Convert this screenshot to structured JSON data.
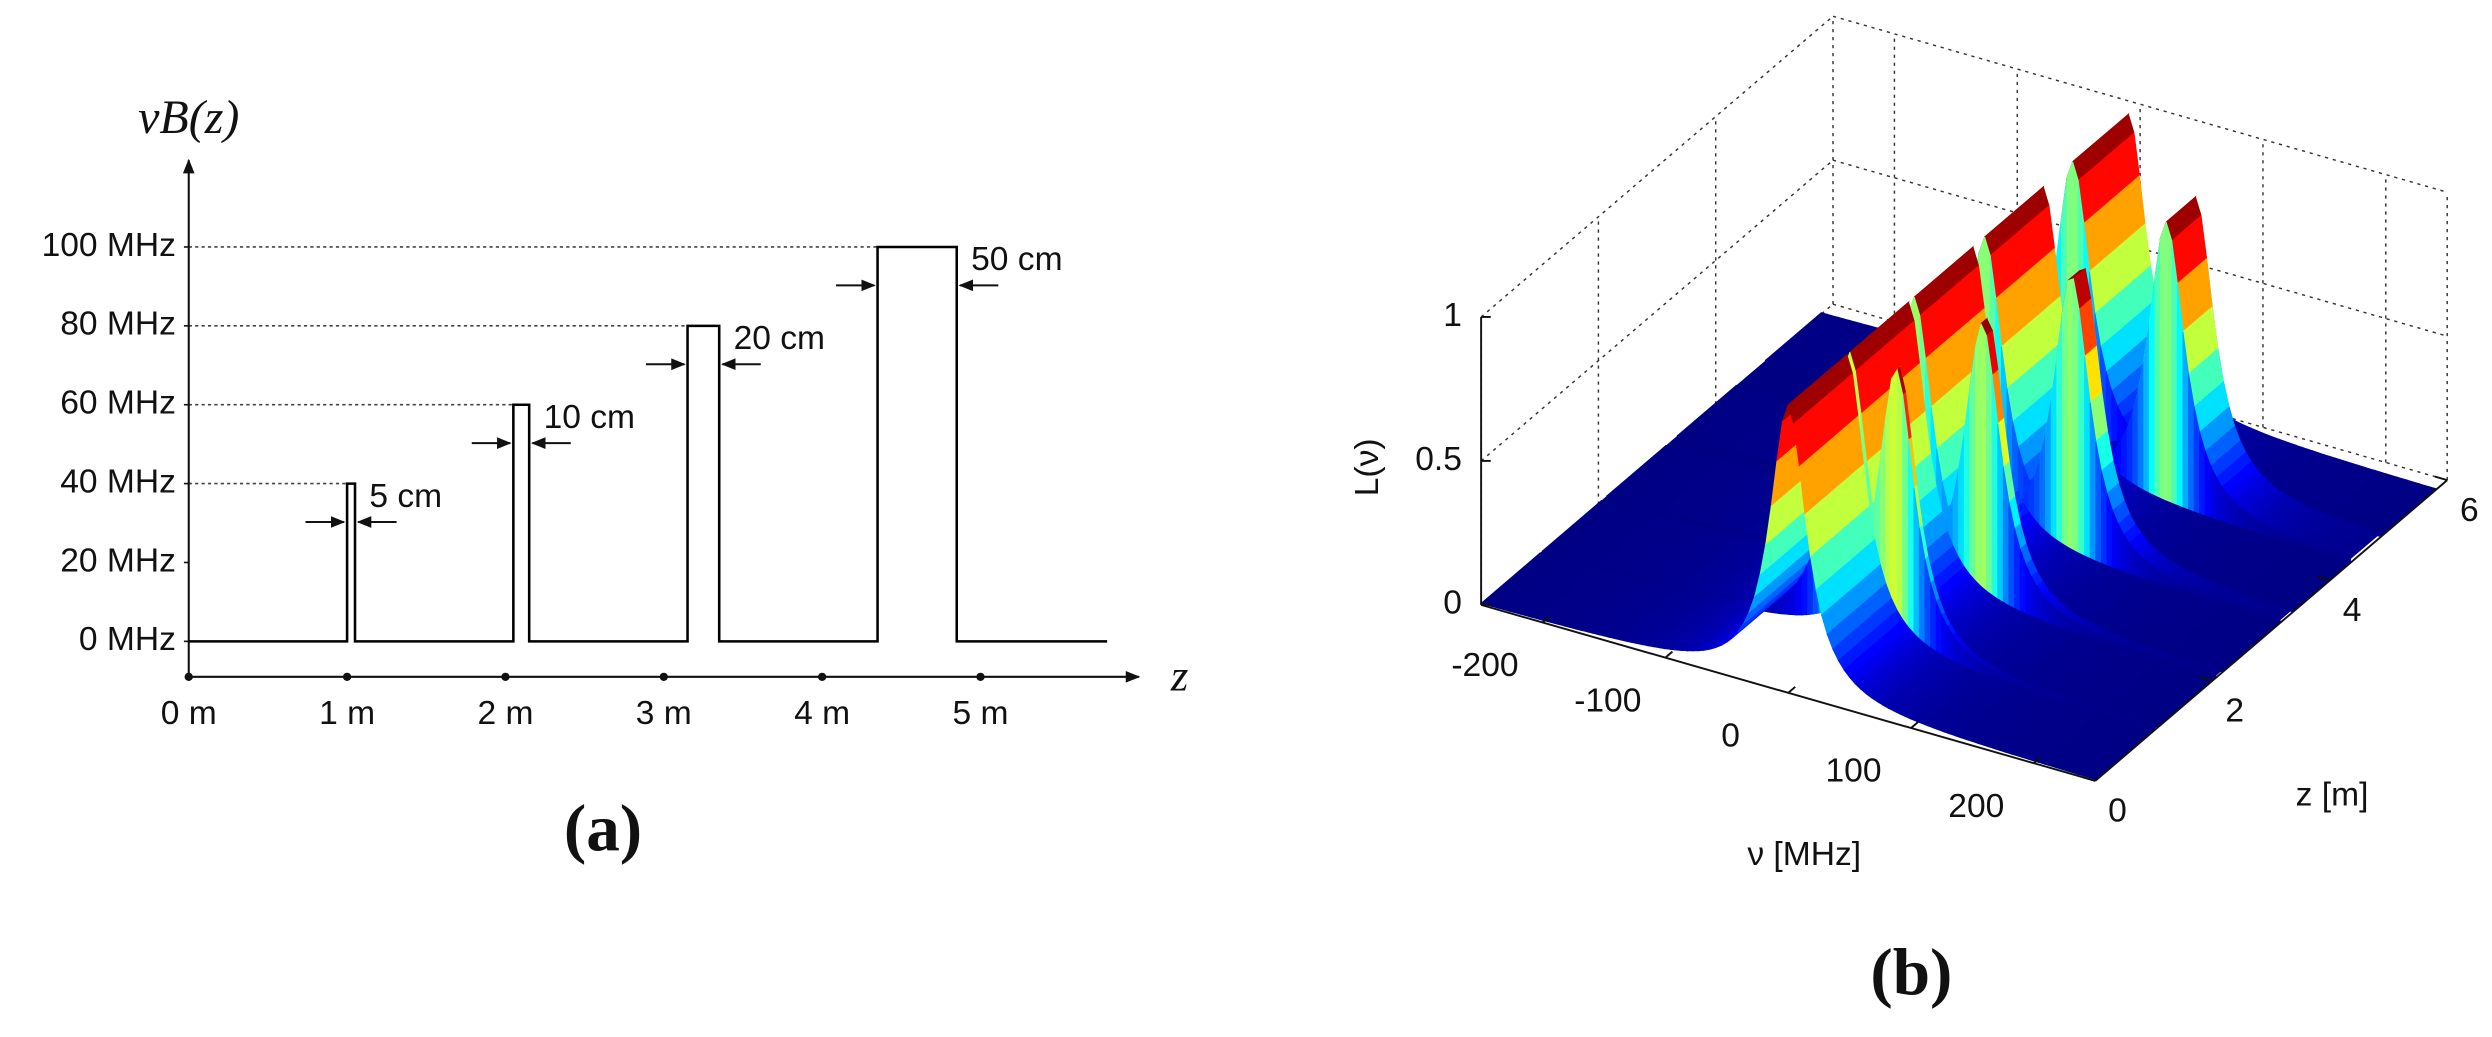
{
  "chart_data": [
    {
      "type": "line",
      "ylabel": "νB(z)",
      "xlabel": "z",
      "panel_label": "(a)",
      "x": [
        0,
        1,
        1,
        1.05,
        1.05,
        2.05,
        2.05,
        2.15,
        2.15,
        3.15,
        3.15,
        3.35,
        3.35,
        4.35,
        4.35,
        4.85,
        4.85,
        5.8
      ],
      "series": [
        {
          "color": "#000000",
          "values": [
            0,
            0,
            40,
            40,
            0,
            0,
            60,
            60,
            0,
            0,
            80,
            80,
            0,
            0,
            100,
            100,
            0,
            0
          ]
        }
      ],
      "annotations": [
        "5 cm",
        "10 cm",
        "20 cm",
        "50 cm"
      ],
      "xlim": [
        0,
        6
      ],
      "ylim": [
        -9,
        122
      ],
      "xticks": [
        {
          "value": 0,
          "label": "0 m"
        },
        {
          "value": 1,
          "label": "1 m"
        },
        {
          "value": 2,
          "label": "2 m"
        },
        {
          "value": 3,
          "label": "3 m"
        },
        {
          "value": 4,
          "label": "4 m"
        },
        {
          "value": 5,
          "label": "5 m"
        }
      ],
      "yticks": [
        {
          "value": 0,
          "label": "0 MHz"
        },
        {
          "value": 20,
          "label": "20 MHz"
        },
        {
          "value": 40,
          "label": "40 MHz"
        },
        {
          "value": 60,
          "label": "60 MHz"
        },
        {
          "value": 80,
          "label": "80 MHz"
        },
        {
          "value": 100,
          "label": "100 MHz"
        }
      ]
    },
    {
      "type": "surface",
      "xlabel": "ν [MHz]",
      "ylabel": "z [m]",
      "zlabel": "L(ν)",
      "panel_label": "(b)",
      "colormap": "jet",
      "grid": true,
      "xlim": [
        -250,
        250
      ],
      "ylim": [
        0,
        6
      ],
      "zlim": [
        0,
        1
      ],
      "xticks": [
        -200,
        -100,
        0,
        100,
        200
      ],
      "yticks": [
        0,
        2,
        4,
        6
      ],
      "zticks": [
        0,
        0.5,
        1
      ]
    }
  ]
}
